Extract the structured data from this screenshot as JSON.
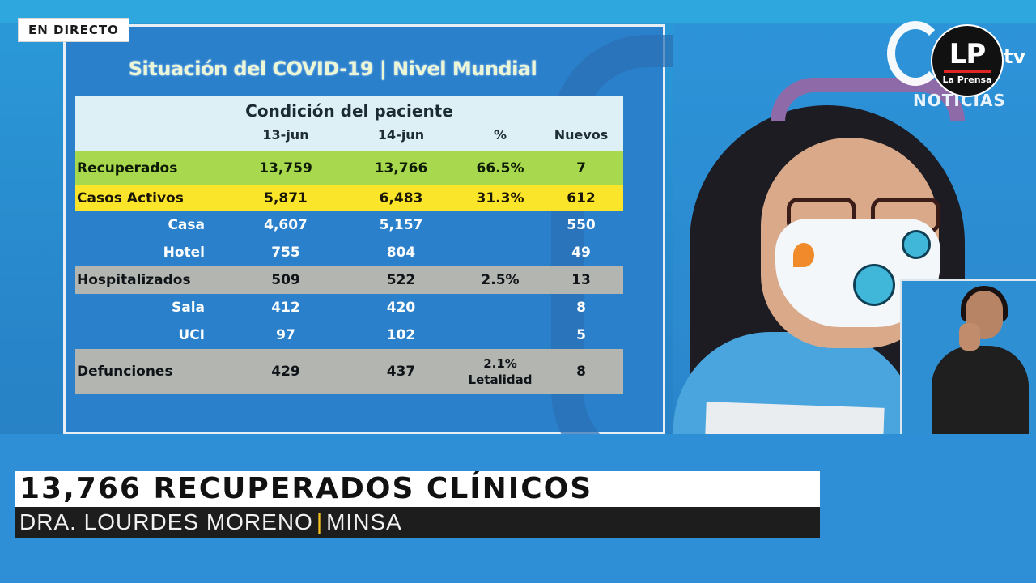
{
  "live_badge": "EN DIRECTO",
  "slide": {
    "title": "Situación del COVID-19 | Nivel Mundial",
    "table_caption": "Condición del paciente",
    "columns": [
      "13-jun",
      "14-jun",
      "%",
      "Nuevos"
    ],
    "rows": [
      {
        "name": "Recuperados",
        "a": "13,759",
        "b": "13,766",
        "pct": "66.5%",
        "nuevos": "7"
      },
      {
        "name": "Casos Activos",
        "a": "5,871",
        "b": "6,483",
        "pct": "31.3%",
        "nuevos": "612"
      },
      {
        "name": "Casa",
        "a": "4,607",
        "b": "5,157",
        "pct": "",
        "nuevos": "550"
      },
      {
        "name": "Hotel",
        "a": "755",
        "b": "804",
        "pct": "",
        "nuevos": "49"
      },
      {
        "name": "Hospitalizados",
        "a": "509",
        "b": "522",
        "pct": "2.5%",
        "nuevos": "13"
      },
      {
        "name": "Sala",
        "a": "412",
        "b": "420",
        "pct": "",
        "nuevos": "8"
      },
      {
        "name": "UCI",
        "a": "97",
        "b": "102",
        "pct": "",
        "nuevos": "5"
      },
      {
        "name": "Defunciones",
        "a": "429",
        "b": "437",
        "pct": "2.1%",
        "pct2": "Letalidad",
        "nuevos": "8"
      }
    ]
  },
  "logos": {
    "channel_suffix": "tv",
    "channel_label": "NOTICIAS",
    "lp_initials": "LP",
    "lp_name": "La Prensa"
  },
  "lower_third": {
    "headline": "13,766 RECUPERADOS CLÍNICOS",
    "speaker": "DRA. LOURDES MORENO",
    "separator": "|",
    "org": "MINSA"
  },
  "colors": {
    "recuperados_row": "#a7d84e",
    "activos_row": "#fbe52b",
    "gray_row": "#b3b5b1",
    "slide_bg": "#2b80cc"
  }
}
